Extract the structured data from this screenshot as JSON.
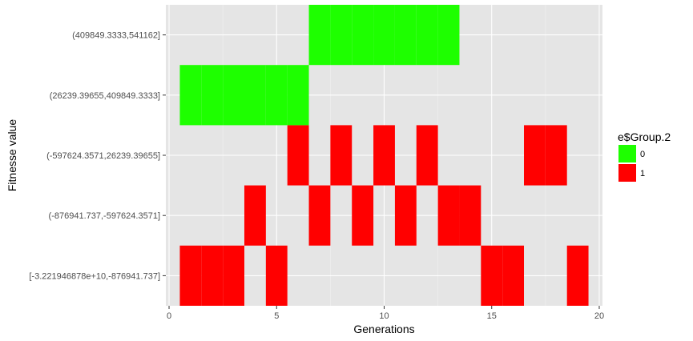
{
  "chart_data": {
    "type": "heatmap",
    "xlabel": "Generations",
    "ylabel": "Fitnesse value",
    "xlim": [
      -0.15,
      20.15
    ],
    "x_ticks": [
      0,
      5,
      10,
      15,
      20
    ],
    "y_categories": [
      "[-3.221946878e+10,-876941.737]",
      "(-876941.737,-597624.3571]",
      "(-597624.3571,26239.39655]",
      "(26239.39655,409849.3333]",
      "(409849.3333,541162]"
    ],
    "legend": {
      "title": "e$Group.2",
      "entries": [
        {
          "label": "0",
          "color": "#1eff00"
        },
        {
          "label": "1",
          "color": "#ff0000"
        }
      ]
    },
    "colors": {
      "0": "#1eff00",
      "1": "#ff0000"
    },
    "panel_background": "#e5e5e5",
    "grid": true,
    "cells": [
      {
        "x": 1,
        "y": 0,
        "group": "1"
      },
      {
        "x": 2,
        "y": 0,
        "group": "1"
      },
      {
        "x": 3,
        "y": 0,
        "group": "1"
      },
      {
        "x": 5,
        "y": 0,
        "group": "1"
      },
      {
        "x": 15,
        "y": 0,
        "group": "1"
      },
      {
        "x": 16,
        "y": 0,
        "group": "1"
      },
      {
        "x": 19,
        "y": 0,
        "group": "1"
      },
      {
        "x": 4,
        "y": 1,
        "group": "1"
      },
      {
        "x": 7,
        "y": 1,
        "group": "1"
      },
      {
        "x": 9,
        "y": 1,
        "group": "1"
      },
      {
        "x": 11,
        "y": 1,
        "group": "1"
      },
      {
        "x": 13,
        "y": 1,
        "group": "1"
      },
      {
        "x": 14,
        "y": 1,
        "group": "1"
      },
      {
        "x": 6,
        "y": 2,
        "group": "1"
      },
      {
        "x": 8,
        "y": 2,
        "group": "1"
      },
      {
        "x": 10,
        "y": 2,
        "group": "1"
      },
      {
        "x": 12,
        "y": 2,
        "group": "1"
      },
      {
        "x": 17,
        "y": 2,
        "group": "1"
      },
      {
        "x": 18,
        "y": 2,
        "group": "1"
      },
      {
        "x": 1,
        "y": 3,
        "group": "0"
      },
      {
        "x": 2,
        "y": 3,
        "group": "0"
      },
      {
        "x": 3,
        "y": 3,
        "group": "0"
      },
      {
        "x": 4,
        "y": 3,
        "group": "0"
      },
      {
        "x": 5,
        "y": 3,
        "group": "0"
      },
      {
        "x": 6,
        "y": 3,
        "group": "0"
      },
      {
        "x": 7,
        "y": 4,
        "group": "0"
      },
      {
        "x": 8,
        "y": 4,
        "group": "0"
      },
      {
        "x": 9,
        "y": 4,
        "group": "0"
      },
      {
        "x": 10,
        "y": 4,
        "group": "0"
      },
      {
        "x": 11,
        "y": 4,
        "group": "0"
      },
      {
        "x": 12,
        "y": 4,
        "group": "0"
      },
      {
        "x": 13,
        "y": 4,
        "group": "0"
      }
    ]
  }
}
